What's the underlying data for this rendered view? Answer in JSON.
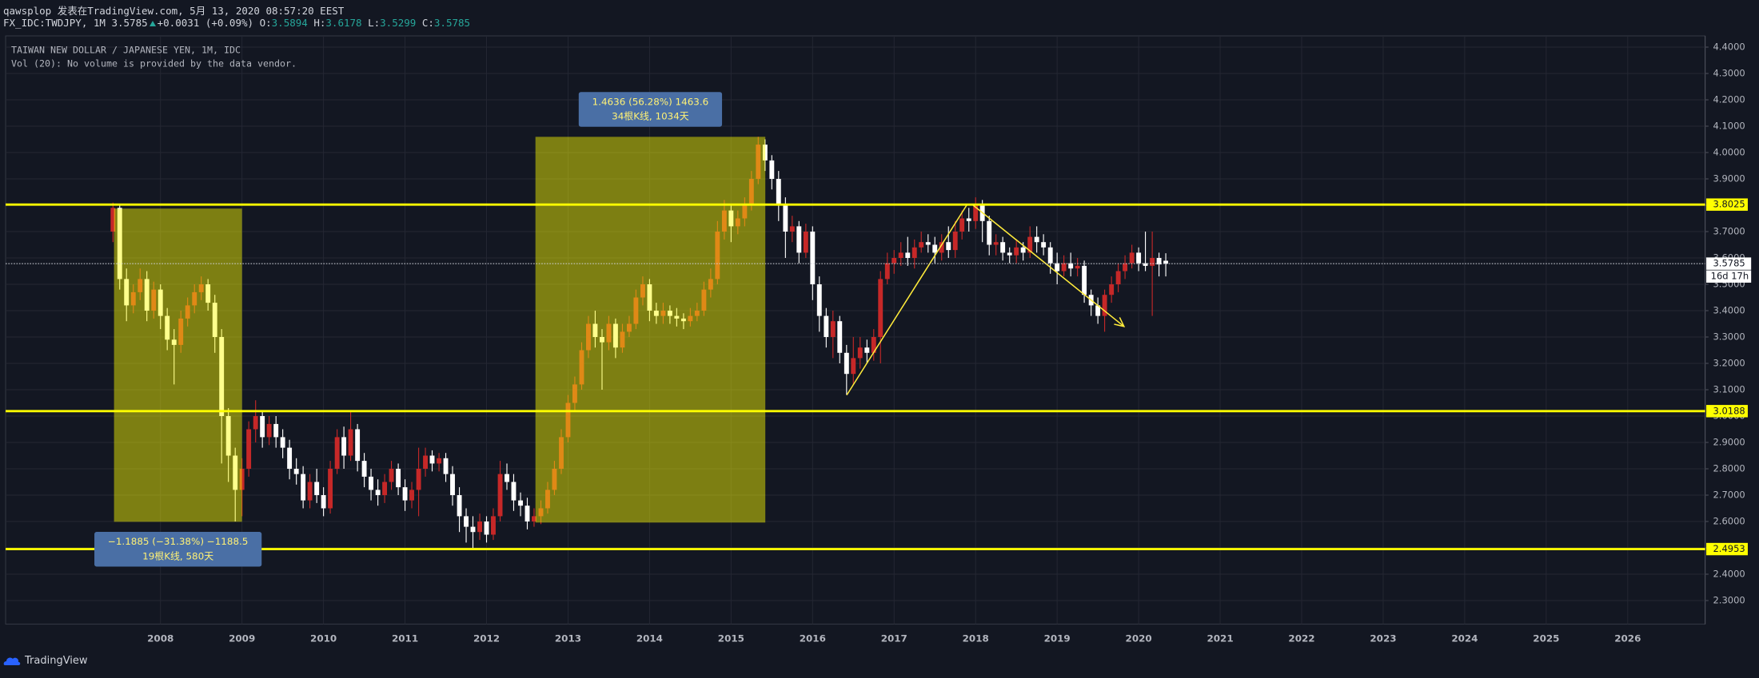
{
  "header": {
    "byline": "qawsplop 发表在TradingView.com, 5月 13, 2020 08:57:20 EEST",
    "symbol": "FX_IDC:TWDJPY, 1M",
    "change": "+0.0031 (+0.09%)",
    "ohlc_labels": [
      "O:",
      "H:",
      "L:",
      "C:"
    ]
  },
  "footer": {
    "brand": "TradingView"
  },
  "chart_data": {
    "type": "candlestick",
    "title": "TAIWAN NEW DOLLAR / JAPANESE YEN, 1M, IDC",
    "subtitle": "Vol (20): No volume is provided by the data vendor.",
    "up_color": "#c62828",
    "down_color": "#ffffff",
    "grid": true,
    "xlim": [
      2006.1,
      2026.95
    ],
    "xticks": [
      2008,
      2009,
      2010,
      2011,
      2012,
      2013,
      2014,
      2015,
      2016,
      2017,
      2018,
      2019,
      2020,
      2021,
      2022,
      2023,
      2024,
      2025,
      2026
    ],
    "ylim": [
      2.2104,
      4.4425
    ],
    "yticks": [
      {
        "value": 2.3,
        "label": "2.3000"
      },
      {
        "value": 2.4,
        "label": "2.4000"
      },
      {
        "value": 2.5,
        "label": "2.5000"
      },
      {
        "value": 2.6,
        "label": "2.6000"
      },
      {
        "value": 2.7,
        "label": "2.7000"
      },
      {
        "value": 2.8,
        "label": "2.8000"
      },
      {
        "value": 2.9,
        "label": "2.9000"
      },
      {
        "value": 3.0,
        "label": "3.0000"
      },
      {
        "value": 3.1,
        "label": "3.1000"
      },
      {
        "value": 3.2,
        "label": "3.2000"
      },
      {
        "value": 3.3,
        "label": "3.3000"
      },
      {
        "value": 3.4,
        "label": "3.4000"
      },
      {
        "value": 3.5,
        "label": "3.5000"
      },
      {
        "value": 3.6,
        "label": "3.6000"
      },
      {
        "value": 3.7,
        "label": "3.7000"
      },
      {
        "value": 3.8,
        "label": "3.8000"
      },
      {
        "value": 3.9,
        "label": "3.9000"
      },
      {
        "value": 4.0,
        "label": "4.0000"
      },
      {
        "value": 4.1,
        "label": "4.1000"
      },
      {
        "value": 4.2,
        "label": "4.2000"
      },
      {
        "value": 4.3,
        "label": "4.3000"
      },
      {
        "value": 4.4,
        "label": "4.4000"
      }
    ],
    "x": [
      2007.417,
      2007.5,
      2007.583,
      2007.667,
      2007.75,
      2007.833,
      2007.917,
      2008,
      2008.083,
      2008.167,
      2008.25,
      2008.333,
      2008.417,
      2008.5,
      2008.583,
      2008.667,
      2008.75,
      2008.833,
      2008.917,
      2009,
      2009.083,
      2009.167,
      2009.25,
      2009.333,
      2009.417,
      2009.5,
      2009.583,
      2009.667,
      2009.75,
      2009.833,
      2009.917,
      2010,
      2010.083,
      2010.167,
      2010.25,
      2010.333,
      2010.417,
      2010.5,
      2010.583,
      2010.667,
      2010.75,
      2010.833,
      2010.917,
      2011,
      2011.083,
      2011.167,
      2011.25,
      2011.333,
      2011.417,
      2011.5,
      2011.583,
      2011.667,
      2011.75,
      2011.833,
      2011.917,
      2012,
      2012.083,
      2012.167,
      2012.25,
      2012.333,
      2012.417,
      2012.5,
      2012.583,
      2012.667,
      2012.75,
      2012.833,
      2012.917,
      2013,
      2013.083,
      2013.167,
      2013.25,
      2013.333,
      2013.417,
      2013.5,
      2013.583,
      2013.667,
      2013.75,
      2013.833,
      2013.917,
      2014,
      2014.083,
      2014.167,
      2014.25,
      2014.333,
      2014.417,
      2014.5,
      2014.583,
      2014.667,
      2014.75,
      2014.833,
      2014.917,
      2015,
      2015.083,
      2015.167,
      2015.25,
      2015.333,
      2015.417,
      2015.5,
      2015.583,
      2015.667,
      2015.75,
      2015.833,
      2015.917,
      2016,
      2016.083,
      2016.167,
      2016.25,
      2016.333,
      2016.417,
      2016.5,
      2016.583,
      2016.667,
      2016.75,
      2016.833,
      2016.917,
      2017,
      2017.083,
      2017.167,
      2017.25,
      2017.333,
      2017.417,
      2017.5,
      2017.583,
      2017.667,
      2017.75,
      2017.833,
      2017.917,
      2018,
      2018.083,
      2018.167,
      2018.25,
      2018.333,
      2018.417,
      2018.5,
      2018.583,
      2018.667,
      2018.75,
      2018.833,
      2018.917,
      2019,
      2019.083,
      2019.167,
      2019.25,
      2019.333,
      2019.417,
      2019.5,
      2019.583,
      2019.667,
      2019.75,
      2019.833,
      2019.917,
      2020,
      2020.083,
      2020.167,
      2020.25,
      2020.333
    ],
    "open": [
      3.7,
      3.79,
      3.52,
      3.42,
      3.47,
      3.52,
      3.4,
      3.48,
      3.38,
      3.29,
      3.27,
      3.37,
      3.42,
      3.47,
      3.5,
      3.43,
      3.3,
      3.0,
      2.85,
      2.72,
      2.8,
      2.95,
      3.0,
      2.92,
      2.97,
      2.92,
      2.88,
      2.8,
      2.78,
      2.68,
      2.75,
      2.7,
      2.65,
      2.8,
      2.92,
      2.85,
      2.95,
      2.83,
      2.77,
      2.72,
      2.7,
      2.75,
      2.8,
      2.73,
      2.68,
      2.72,
      2.8,
      2.85,
      2.82,
      2.84,
      2.78,
      2.7,
      2.62,
      2.58,
      2.56,
      2.6,
      2.55,
      2.62,
      2.78,
      2.75,
      2.68,
      2.66,
      2.6,
      2.62,
      2.65,
      2.72,
      2.8,
      2.92,
      3.05,
      3.12,
      3.25,
      3.35,
      3.3,
      3.28,
      3.35,
      3.26,
      3.32,
      3.35,
      3.45,
      3.5,
      3.4,
      3.38,
      3.4,
      3.38,
      3.37,
      3.36,
      3.38,
      3.4,
      3.48,
      3.52,
      3.7,
      3.78,
      3.72,
      3.75,
      3.8,
      3.9,
      4.03,
      3.97,
      3.9,
      3.8,
      3.7,
      3.72,
      3.62,
      3.7,
      3.5,
      3.38,
      3.3,
      3.36,
      3.24,
      3.16,
      3.22,
      3.26,
      3.24,
      3.3,
      3.52,
      3.58,
      3.6,
      3.62,
      3.6,
      3.64,
      3.66,
      3.65,
      3.62,
      3.66,
      3.63,
      3.7,
      3.75,
      3.74,
      3.8,
      3.74,
      3.65,
      3.66,
      3.62,
      3.61,
      3.64,
      3.62,
      3.68,
      3.66,
      3.64,
      3.58,
      3.55,
      3.58,
      3.56,
      3.57,
      3.46,
      3.42,
      3.38,
      3.46,
      3.5,
      3.55,
      3.58,
      3.62,
      3.58,
      3.57,
      3.6,
      3.5894
    ],
    "high": [
      3.81,
      3.8,
      3.56,
      3.5,
      3.56,
      3.55,
      3.51,
      3.5,
      3.41,
      3.33,
      3.4,
      3.45,
      3.5,
      3.53,
      3.52,
      3.46,
      3.33,
      3.03,
      2.88,
      2.84,
      2.98,
      3.06,
      3.02,
      3.0,
      3.0,
      2.95,
      2.91,
      2.84,
      2.81,
      2.78,
      2.8,
      2.73,
      2.83,
      2.95,
      2.96,
      3.02,
      2.97,
      2.86,
      2.8,
      2.76,
      2.78,
      2.83,
      2.82,
      2.76,
      2.75,
      2.88,
      2.88,
      2.87,
      2.86,
      2.86,
      2.81,
      2.73,
      2.65,
      2.62,
      2.63,
      2.62,
      2.65,
      2.83,
      2.82,
      2.78,
      2.71,
      2.69,
      2.65,
      2.68,
      2.75,
      2.83,
      2.95,
      3.08,
      3.15,
      3.28,
      3.38,
      3.4,
      3.33,
      3.38,
      3.37,
      3.35,
      3.38,
      3.48,
      3.53,
      3.52,
      3.43,
      3.43,
      3.42,
      3.41,
      3.39,
      3.41,
      3.43,
      3.51,
      3.56,
      3.74,
      3.82,
      3.8,
      3.78,
      3.83,
      3.93,
      4.06,
      4.05,
      3.99,
      3.93,
      3.83,
      3.76,
      3.74,
      3.73,
      3.72,
      3.53,
      3.41,
      3.4,
      3.38,
      3.27,
      3.3,
      3.3,
      3.29,
      3.33,
      3.55,
      3.62,
      3.63,
      3.66,
      3.68,
      3.67,
      3.7,
      3.69,
      3.68,
      3.69,
      3.72,
      3.74,
      3.78,
      3.79,
      3.83,
      3.82,
      3.76,
      3.69,
      3.68,
      3.64,
      3.67,
      3.66,
      3.72,
      3.72,
      3.69,
      3.66,
      3.62,
      3.61,
      3.62,
      3.6,
      3.59,
      3.48,
      3.45,
      3.48,
      3.53,
      3.58,
      3.61,
      3.65,
      3.64,
      3.7,
      3.7,
      3.62,
      3.6178
    ],
    "low": [
      3.66,
      3.48,
      3.36,
      3.39,
      3.44,
      3.36,
      3.37,
      3.33,
      3.25,
      3.12,
      3.24,
      3.34,
      3.39,
      3.44,
      3.4,
      3.24,
      2.82,
      2.75,
      2.6,
      2.62,
      2.77,
      2.9,
      2.88,
      2.89,
      2.88,
      2.84,
      2.76,
      2.74,
      2.65,
      2.65,
      2.67,
      2.62,
      2.63,
      2.78,
      2.8,
      2.83,
      2.79,
      2.73,
      2.68,
      2.66,
      2.67,
      2.72,
      2.7,
      2.64,
      2.65,
      2.62,
      2.77,
      2.79,
      2.79,
      2.75,
      2.66,
      2.56,
      2.52,
      2.5,
      2.53,
      2.52,
      2.53,
      2.6,
      2.72,
      2.64,
      2.62,
      2.57,
      2.58,
      2.59,
      2.63,
      2.7,
      2.78,
      2.9,
      3.02,
      3.1,
      3.22,
      3.26,
      3.1,
      3.25,
      3.22,
      3.24,
      3.3,
      3.33,
      3.42,
      3.36,
      3.35,
      3.35,
      3.35,
      3.34,
      3.33,
      3.34,
      3.36,
      3.38,
      3.45,
      3.5,
      3.67,
      3.66,
      3.69,
      3.72,
      3.78,
      3.88,
      3.93,
      3.86,
      3.74,
      3.6,
      3.66,
      3.58,
      3.6,
      3.44,
      3.32,
      3.26,
      3.22,
      3.2,
      3.08,
      3.12,
      3.18,
      3.2,
      3.21,
      3.2,
      3.5,
      3.54,
      3.57,
      3.57,
      3.56,
      3.62,
      3.62,
      3.58,
      3.59,
      3.6,
      3.6,
      3.67,
      3.7,
      3.71,
      3.66,
      3.61,
      3.61,
      3.59,
      3.58,
      3.58,
      3.59,
      3.6,
      3.62,
      3.61,
      3.54,
      3.5,
      3.53,
      3.53,
      3.53,
      3.43,
      3.38,
      3.35,
      3.32,
      3.43,
      3.47,
      3.52,
      3.56,
      3.55,
      3.55,
      3.38,
      3.53,
      3.5299
    ],
    "close": [
      3.79,
      3.52,
      3.42,
      3.47,
      3.52,
      3.4,
      3.48,
      3.38,
      3.29,
      3.27,
      3.37,
      3.42,
      3.47,
      3.5,
      3.43,
      3.3,
      3.0,
      2.85,
      2.72,
      2.8,
      2.95,
      3.0,
      2.92,
      2.97,
      2.92,
      2.88,
      2.8,
      2.78,
      2.68,
      2.75,
      2.7,
      2.65,
      2.8,
      2.92,
      2.85,
      2.95,
      2.83,
      2.77,
      2.72,
      2.7,
      2.75,
      2.8,
      2.73,
      2.68,
      2.72,
      2.8,
      2.85,
      2.82,
      2.84,
      2.78,
      2.7,
      2.62,
      2.58,
      2.56,
      2.6,
      2.55,
      2.62,
      2.78,
      2.75,
      2.68,
      2.66,
      2.6,
      2.62,
      2.65,
      2.72,
      2.8,
      2.92,
      3.05,
      3.12,
      3.25,
      3.35,
      3.3,
      3.28,
      3.35,
      3.26,
      3.32,
      3.35,
      3.45,
      3.5,
      3.4,
      3.38,
      3.4,
      3.38,
      3.37,
      3.36,
      3.38,
      3.4,
      3.48,
      3.52,
      3.7,
      3.78,
      3.72,
      3.75,
      3.8,
      3.9,
      4.03,
      3.97,
      3.9,
      3.8,
      3.7,
      3.72,
      3.62,
      3.7,
      3.5,
      3.38,
      3.3,
      3.36,
      3.24,
      3.16,
      3.22,
      3.26,
      3.24,
      3.3,
      3.52,
      3.58,
      3.6,
      3.62,
      3.6,
      3.64,
      3.66,
      3.65,
      3.62,
      3.66,
      3.63,
      3.7,
      3.75,
      3.74,
      3.8,
      3.74,
      3.65,
      3.66,
      3.62,
      3.61,
      3.64,
      3.62,
      3.68,
      3.66,
      3.64,
      3.58,
      3.55,
      3.58,
      3.56,
      3.57,
      3.46,
      3.42,
      3.38,
      3.46,
      3.5,
      3.55,
      3.58,
      3.62,
      3.58,
      3.57,
      3.6,
      3.5754,
      3.5785
    ],
    "countdown": "16d 17h",
    "price_lines": [
      {
        "value": 3.8025,
        "color": "#ffff00"
      },
      {
        "value": 3.0188,
        "color": "#ffff00"
      },
      {
        "value": 2.4953,
        "color": "#ffff00"
      }
    ],
    "boxes": [
      {
        "x": [
          2007.43,
          2009.0
        ],
        "y": [
          2.5989,
          3.7874
        ],
        "color": "#ffff00",
        "label": [
          "−1.1885 (−31.38%) −1188.5",
          "19根K线, 580天"
        ]
      },
      {
        "x": [
          2012.6,
          2015.42
        ],
        "y": [
          2.596,
          4.0596
        ],
        "color": "#ffff00",
        "label": [
          "1.4636 (56.28%) 1463.6",
          "34根K线, 1034天"
        ]
      }
    ],
    "lines": [
      {
        "points": [
          [
            2016.42,
            3.08
          ],
          [
            2017.89,
            3.8
          ]
        ],
        "color": "#ffeb3b",
        "arrow": false
      },
      {
        "points": [
          [
            2017.97,
            3.8
          ],
          [
            2019.82,
            3.34
          ]
        ],
        "color": "#ffeb3b",
        "arrow": true
      }
    ]
  }
}
